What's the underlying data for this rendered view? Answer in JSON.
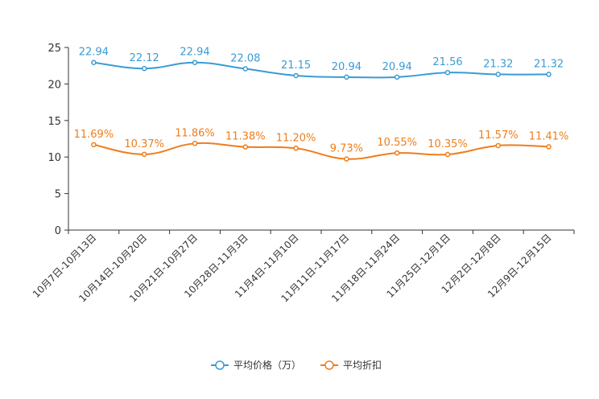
{
  "chart_data": {
    "type": "line",
    "categories": [
      "10月7日-10月13日",
      "10月14日-10月20日",
      "10月21日-10月27日",
      "10月28日-11月3日",
      "11月4日-11月10日",
      "11月11日-11月17日",
      "11月18日-11月24日",
      "11月25日-12月1日",
      "12月2日-12月8日",
      "12月9日-12月15日"
    ],
    "series": [
      {
        "name": "平均价格（万）",
        "color": "#3A9BD5",
        "values": [
          22.94,
          22.12,
          22.94,
          22.08,
          21.15,
          20.94,
          20.94,
          21.56,
          21.32,
          21.32
        ],
        "labels": [
          "22.94",
          "22.12",
          "22.94",
          "22.08",
          "21.15",
          "20.94",
          "20.94",
          "21.56",
          "21.32",
          "21.32"
        ]
      },
      {
        "name": "平均折扣",
        "color": "#F07D1A",
        "values": [
          11.69,
          10.37,
          11.86,
          11.38,
          11.2,
          9.73,
          10.55,
          10.35,
          11.57,
          11.41
        ],
        "labels": [
          "11.69%",
          "10.37%",
          "11.86%",
          "11.38%",
          "11.20%",
          "9.73%",
          "10.55%",
          "10.35%",
          "11.57%",
          "11.41%"
        ]
      }
    ],
    "yticks": [
      "0",
      "5",
      "10",
      "15",
      "20",
      "25"
    ],
    "ylim": [
      0,
      25
    ],
    "title": "",
    "xlabel": "",
    "ylabel": "",
    "legend_position": "bottom-center"
  }
}
